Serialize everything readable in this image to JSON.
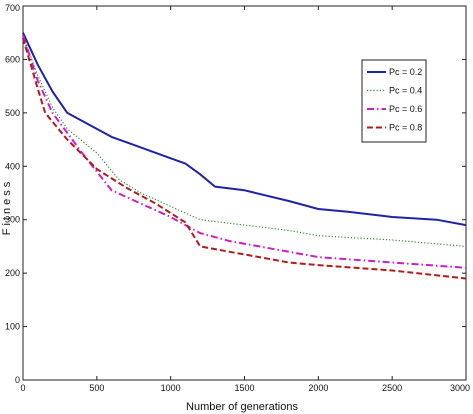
{
  "chart_data": {
    "type": "line",
    "title": "",
    "xlabel": "Number of generations",
    "ylabel": "Fitness",
    "xlim": [
      0,
      3000
    ],
    "ylim": [
      0,
      700
    ],
    "xticks": [
      0,
      500,
      1000,
      1500,
      2000,
      2500,
      3000
    ],
    "yticks": [
      0,
      100,
      200,
      300,
      400,
      500,
      600,
      700
    ],
    "grid": false,
    "legend_position": "top-right",
    "series": [
      {
        "name": "Pc = 0.2",
        "color": "#1f23a8",
        "style": "solid",
        "x": [
          0,
          100,
          200,
          300,
          600,
          800,
          1000,
          1100,
          1200,
          1300,
          1500,
          1800,
          2000,
          2200,
          2500,
          2800,
          3000
        ],
        "y": [
          650,
          590,
          540,
          500,
          455,
          435,
          415,
          405,
          385,
          362,
          355,
          335,
          320,
          315,
          305,
          300,
          290
        ]
      },
      {
        "name": "Pc = 0.4",
        "color": "#2e8b2e",
        "style": "dotted",
        "x": [
          0,
          100,
          200,
          300,
          500,
          650,
          800,
          1000,
          1200,
          1500,
          1800,
          2000,
          2500,
          3000
        ],
        "y": [
          645,
          570,
          510,
          470,
          425,
          375,
          350,
          325,
          300,
          290,
          280,
          270,
          262,
          250
        ]
      },
      {
        "name": "Pc = 0.6",
        "color": "#cc1ccc",
        "style": "dashdot",
        "x": [
          0,
          100,
          200,
          400,
          600,
          800,
          1000,
          1100,
          1200,
          1400,
          1600,
          1800,
          2000,
          2500,
          3000
        ],
        "y": [
          645,
          560,
          500,
          425,
          355,
          330,
          305,
          290,
          275,
          260,
          250,
          240,
          230,
          220,
          210
        ]
      },
      {
        "name": "Pc = 0.8",
        "color": "#b31b1b",
        "style": "dashed",
        "x": [
          0,
          100,
          150,
          300,
          500,
          700,
          900,
          1100,
          1200,
          1400,
          1600,
          1800,
          2000,
          2500,
          3000
        ],
        "y": [
          640,
          545,
          500,
          450,
          395,
          360,
          330,
          295,
          250,
          240,
          230,
          220,
          215,
          205,
          190
        ]
      }
    ]
  }
}
